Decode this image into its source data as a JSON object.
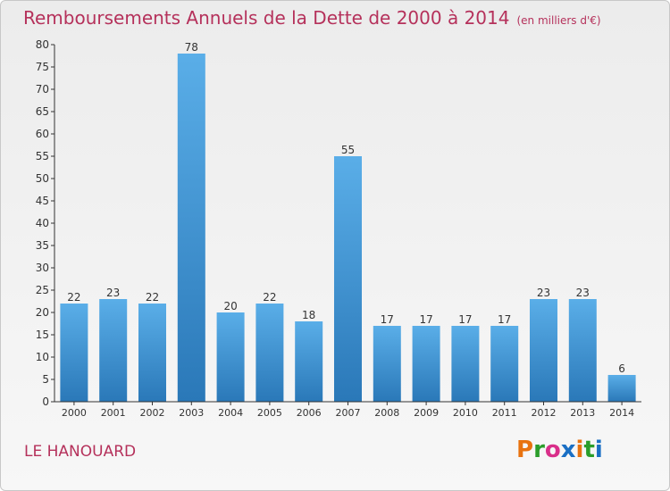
{
  "title": "Remboursements Annuels de la Dette de 2000 à 2014",
  "unit": "(en milliers d'€)",
  "commune": "LE HANOUARD",
  "logo": {
    "text": "Proxiti",
    "colors": [
      "#e8720f",
      "#2a9d2a",
      "#d92f8a",
      "#1a6fc4",
      "#e8720f",
      "#2a9d2a",
      "#1a6fc4"
    ]
  },
  "colors": {
    "title": "#b5315b",
    "bar_light": "#5aaee8",
    "bar_dark": "#2a78b8",
    "axis": "#333333"
  },
  "chart_data": {
    "type": "bar",
    "title": "Remboursements Annuels de la Dette de 2000 à 2014",
    "xlabel": "",
    "ylabel": "",
    "categories": [
      "2000",
      "2001",
      "2002",
      "2003",
      "2004",
      "2005",
      "2006",
      "2007",
      "2008",
      "2009",
      "2010",
      "2011",
      "2012",
      "2013",
      "2014"
    ],
    "values": [
      22,
      23,
      22,
      78,
      20,
      22,
      18,
      55,
      17,
      17,
      17,
      17,
      23,
      23,
      6
    ],
    "ylim": [
      0,
      80
    ],
    "yticks": [
      0,
      5,
      10,
      15,
      20,
      25,
      30,
      35,
      40,
      45,
      50,
      55,
      60,
      65,
      70,
      75,
      80
    ],
    "grid": false,
    "legend": "none"
  }
}
